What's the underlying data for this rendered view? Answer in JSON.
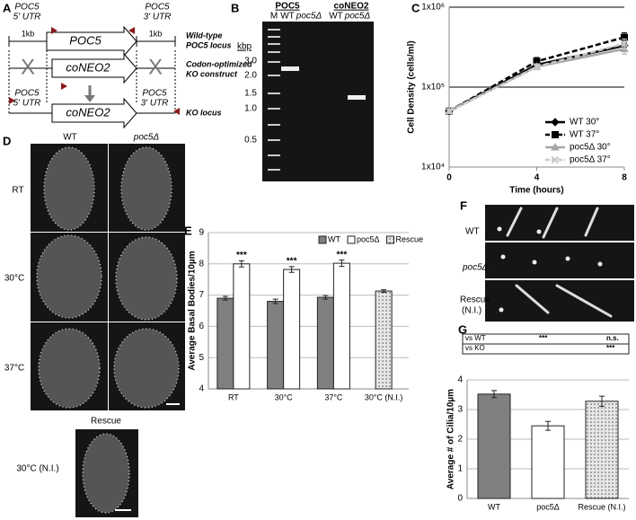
{
  "panel_labels": [
    "A",
    "B",
    "C",
    "D",
    "E",
    "F",
    "G"
  ],
  "panel_a": {
    "texts": [
      "POC5",
      "5' UTR",
      "1kb",
      "POC5",
      "1kb",
      "POC5",
      "3' UTR",
      "X",
      "X",
      "coNEO2",
      "coNEO2",
      "POC5",
      "5' UTR",
      "POC5",
      "3' UTR",
      "Wild-type",
      "POC5 locus",
      "Codon-optimized",
      "KO construct",
      "KO locus"
    ]
  },
  "panel_b": {
    "lane_groups": [
      "POC5",
      "coNEO2"
    ],
    "lanes": [
      "M",
      "WT",
      "poc5Δ",
      "WT",
      "poc5Δ"
    ],
    "unit": "kbp",
    "ladder": [
      "3.0",
      "2.0",
      "1.5",
      "1.0",
      "0.5"
    ]
  },
  "panel_d": {
    "columns": [
      "WT",
      "poc5Δ"
    ],
    "rows": [
      "RT",
      "30°C",
      "37°C"
    ],
    "rescue_title": "Rescue",
    "rescue_row": "30°C (N.I.)"
  },
  "panel_f": {
    "rows": [
      "WT",
      "poc5Δ",
      "Rescue",
      "(N.I.)"
    ]
  },
  "chart_data": [
    {
      "type": "line",
      "ylabel": "Cell Density (cells/ml)",
      "xlabel": "Time (hours)",
      "x": [
        0,
        4,
        8
      ],
      "xlim": [
        0,
        8
      ],
      "xticks": [
        0,
        4,
        8
      ],
      "ylim": [
        10000,
        1000000
      ],
      "yticks": [
        {
          "value": 10000,
          "label": "1x10⁴"
        },
        {
          "value": 100000,
          "label": "1x10⁵"
        },
        {
          "value": 1000000,
          "label": "1x10⁶"
        }
      ],
      "log_y": true,
      "grid": true,
      "legend": "lower right",
      "series": [
        {
          "name": "WT 30°",
          "color": "#000000",
          "dash": false,
          "marker": "diamond",
          "values": [
            50000,
            190000,
            330000
          ],
          "errors": [
            3000,
            15000,
            30000
          ]
        },
        {
          "name": "WT 37°",
          "color": "#000000",
          "dash": true,
          "marker": "square",
          "values": [
            50000,
            210000,
            420000
          ],
          "errors": [
            3000,
            25000,
            60000
          ]
        },
        {
          "name": "poc5Δ 30°",
          "color": "#a6a6a6",
          "dash": false,
          "marker": "triangle",
          "values": [
            50000,
            180000,
            300000
          ],
          "errors": [
            3000,
            15000,
            40000
          ]
        },
        {
          "name": "poc5Δ 37°",
          "color": "#c8c8c8",
          "dash": true,
          "marker": "x",
          "values": [
            50000,
            180000,
            350000
          ],
          "errors": [
            3000,
            15000,
            50000
          ]
        }
      ]
    },
    {
      "type": "bar",
      "ylabel": "Average Basal Bodies/10µm",
      "categories": [
        "RT",
        "30°C",
        "37°C",
        "30°C (N.I.)"
      ],
      "ylim": [
        4,
        9
      ],
      "yticks": [
        4,
        5,
        6,
        7,
        8,
        9
      ],
      "grid": true,
      "legend": "top",
      "series": [
        {
          "name": "WT",
          "color": "#808080",
          "values": [
            6.9,
            6.8,
            6.93,
            null
          ],
          "errors": [
            0.06,
            0.07,
            0.06,
            null
          ]
        },
        {
          "name": "poc5Δ",
          "color": "#ffffff",
          "values": [
            8.0,
            7.82,
            8.02,
            null
          ],
          "errors": [
            0.1,
            0.09,
            0.1,
            null
          ],
          "significance": [
            "***",
            "***",
            "***",
            null
          ]
        },
        {
          "name": "Rescue",
          "color": "#d9d9d9",
          "dotted": true,
          "values": [
            null,
            null,
            null,
            7.13
          ],
          "errors": [
            null,
            null,
            null,
            0.04
          ]
        }
      ]
    },
    {
      "type": "bar",
      "ylabel": "Average # of Cilia/10µm",
      "categories": [
        "WT",
        "poc5Δ",
        "Rescue (N.I.)"
      ],
      "values": [
        3.52,
        2.45,
        3.28
      ],
      "errors": [
        0.12,
        0.15,
        0.17
      ],
      "colors": [
        "#808080",
        "#ffffff",
        "#d9d9d9"
      ],
      "dotted": [
        false,
        false,
        true
      ],
      "ylim": [
        0,
        4
      ],
      "yticks": [
        0,
        1,
        2,
        3,
        4
      ],
      "grid": true,
      "comparisons": [
        [
          "vs WT",
          "***",
          "n.s."
        ],
        [
          "vs KO",
          null,
          "***"
        ]
      ]
    }
  ]
}
